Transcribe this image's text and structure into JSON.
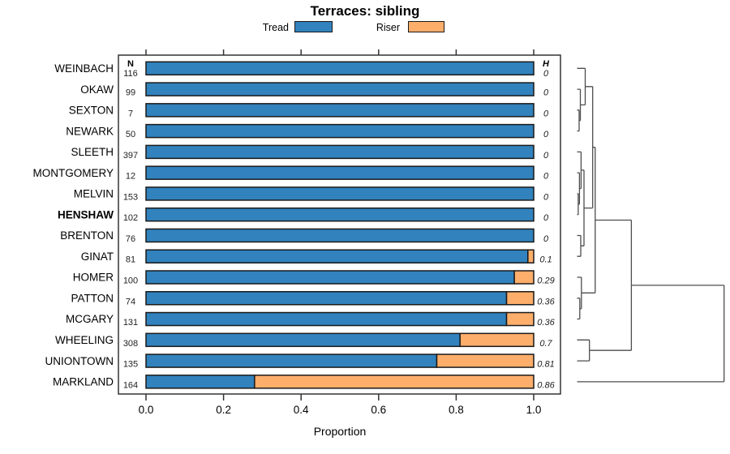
{
  "title": "Terraces: sibling",
  "legend": {
    "items": [
      {
        "label": "Tread",
        "color": "#3182BD"
      },
      {
        "label": "Riser",
        "color": "#FDAE6B"
      }
    ]
  },
  "columns": {
    "n_header": "N",
    "h_header": "H"
  },
  "axis": {
    "xlabel": "Proportion",
    "ticks": [
      "0.0",
      "0.2",
      "0.4",
      "0.6",
      "0.8",
      "1.0"
    ],
    "xlim": [
      0,
      1
    ]
  },
  "colors": {
    "tread": "#3182BD",
    "riser": "#FDAE6B",
    "bar_border": "#1a1a1a",
    "box_border": "#333333",
    "dendro_line": "#4d4d4d",
    "text": "#000000"
  },
  "chart_data": {
    "type": "bar",
    "orientation": "horizontal_stacked",
    "title": "Terraces: sibling",
    "xlabel": "Proportion",
    "xlim": [
      0,
      1
    ],
    "xticks": [
      0.0,
      0.2,
      0.4,
      0.6,
      0.8,
      1.0
    ],
    "categories": [
      "WEINBACH",
      "OKAW",
      "SEXTON",
      "NEWARK",
      "SLEETH",
      "MONTGOMERY",
      "MELVIN",
      "HENSHAW",
      "BRENTON",
      "GINAT",
      "HOMER",
      "PATTON",
      "MCGARY",
      "WHEELING",
      "UNIONTOWN",
      "MARKLAND"
    ],
    "bold_category": "HENSHAW",
    "n_values": [
      116,
      99,
      7,
      50,
      397,
      12,
      153,
      102,
      76,
      81,
      100,
      74,
      131,
      308,
      135,
      164
    ],
    "h_values": [
      "0",
      "0",
      "0",
      "0",
      "0",
      "0",
      "0",
      "0",
      "0",
      "0.1",
      "0.29",
      "0.36",
      "0.36",
      "0.7",
      "0.81",
      "0.86"
    ],
    "series": [
      {
        "name": "Tread",
        "values": [
          1.0,
          1.0,
          1.0,
          1.0,
          1.0,
          1.0,
          1.0,
          1.0,
          1.0,
          0.985,
          0.95,
          0.93,
          0.93,
          0.81,
          0.75,
          0.28
        ]
      },
      {
        "name": "Riser",
        "values": [
          0.0,
          0.0,
          0.0,
          0.0,
          0.0,
          0.0,
          0.0,
          0.0,
          0.0,
          0.015,
          0.05,
          0.07,
          0.07,
          0.19,
          0.25,
          0.72
        ]
      }
    ],
    "dendrogram": {
      "comment": "heights normalized 0 (leaves) .. 1 (root)",
      "merges": [
        {
          "id": "m1",
          "a": "SEXTON",
          "b": "NEWARK",
          "h": 0.014
        },
        {
          "id": "m2",
          "a": "OKAW",
          "b": "m1",
          "h": 0.022
        },
        {
          "id": "m3",
          "a": "WEINBACH",
          "b": "m2",
          "h": 0.055
        },
        {
          "id": "m4",
          "a": "MELVIN",
          "b": "HENSHAW",
          "h": 0.008
        },
        {
          "id": "m5",
          "a": "MONTGOMERY",
          "b": "m4",
          "h": 0.016
        },
        {
          "id": "m6",
          "a": "SLEETH",
          "b": "m5",
          "h": 0.027
        },
        {
          "id": "m7",
          "a": "BRENTON",
          "b": "GINAT",
          "h": 0.025
        },
        {
          "id": "m8",
          "a": "m6",
          "b": "m7",
          "h": 0.047
        },
        {
          "id": "m9",
          "a": "m3",
          "b": "m8",
          "h": 0.106
        },
        {
          "id": "m10",
          "a": "PATTON",
          "b": "MCGARY",
          "h": 0.018
        },
        {
          "id": "m11",
          "a": "HOMER",
          "b": "m10",
          "h": 0.029
        },
        {
          "id": "m12",
          "a": "m9",
          "b": "m11",
          "h": 0.123
        },
        {
          "id": "m13",
          "a": "WHEELING",
          "b": "UNIONTOWN",
          "h": 0.084
        },
        {
          "id": "m14",
          "a": "m12",
          "b": "m13",
          "h": 0.369
        },
        {
          "id": "m15",
          "a": "m14",
          "b": "MARKLAND",
          "h": 1.0
        }
      ]
    }
  }
}
